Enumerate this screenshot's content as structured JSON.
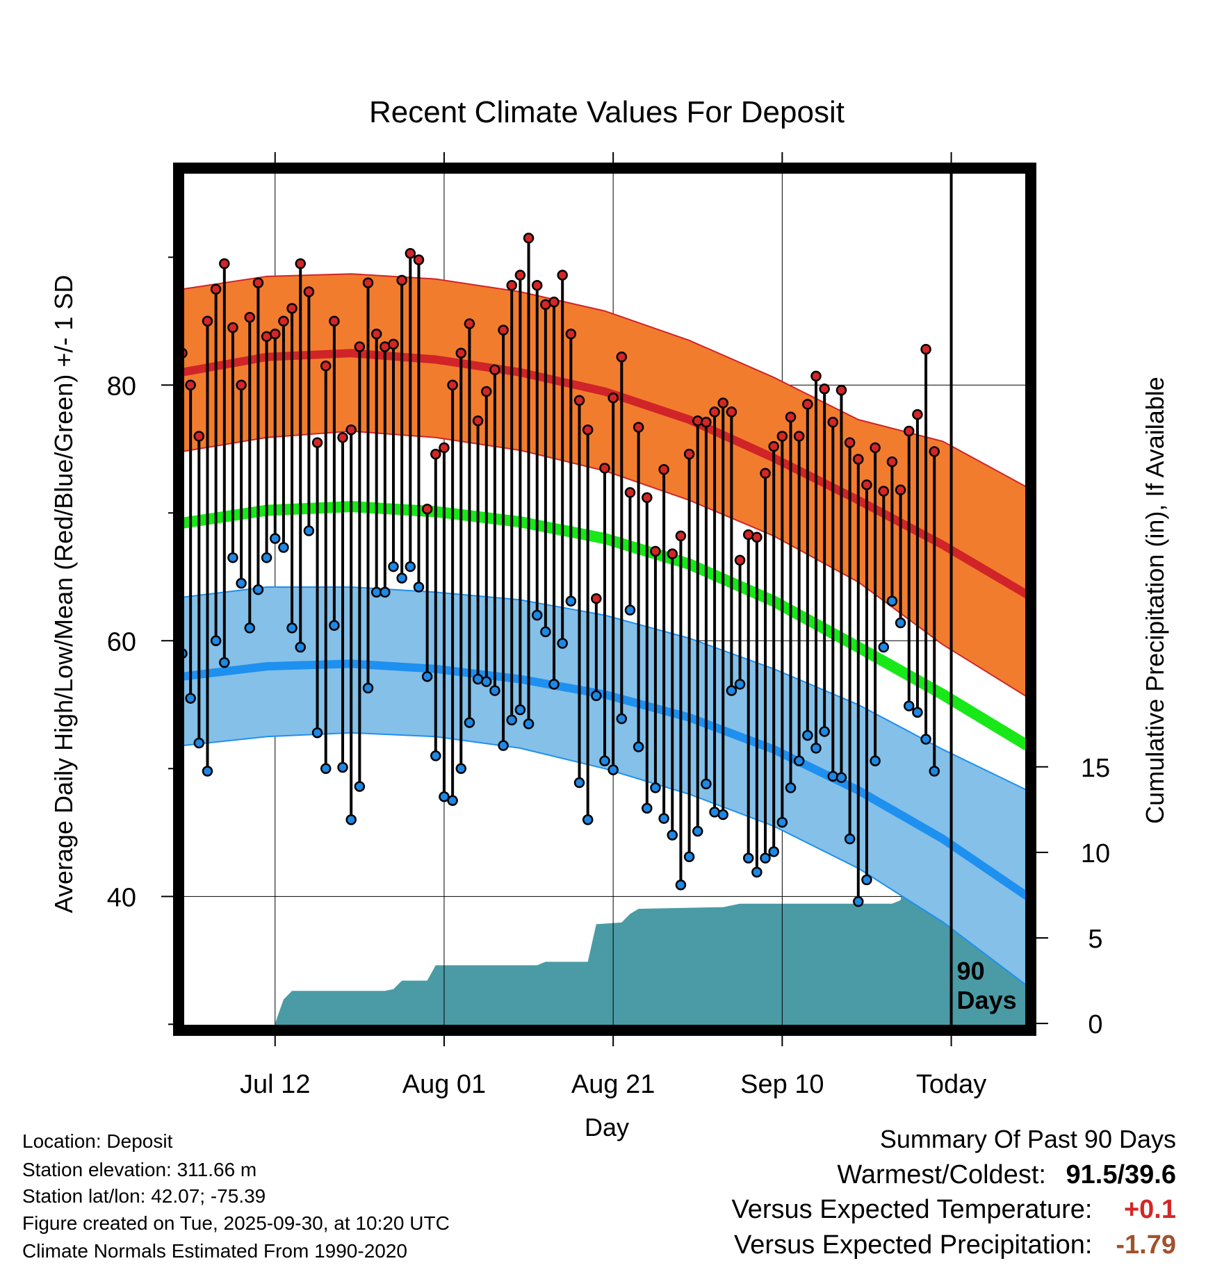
{
  "chart_data": {
    "type": "line",
    "title": "Recent Climate Values For Deposit",
    "xlabel": "Day",
    "ylabel_left": "Average Daily High/Low/Mean (Red/Blue/Green) +/- 1 SD",
    "ylabel_right": "Cumulative Precipitation (in), If Available",
    "x_tick_labels": [
      "Jul 12",
      "Aug 01",
      "Aug 21",
      "Sep 10",
      "Today"
    ],
    "x_tick_days": [
      11,
      31,
      51,
      71,
      91
    ],
    "x_range": [
      0,
      100
    ],
    "y_left_range": [
      29.8,
      96.7
    ],
    "y_left_ticks": [
      40,
      60,
      80
    ],
    "y_left_minor_ticks": [
      30,
      50,
      70,
      90
    ],
    "y_right_range": [
      -0.2,
      49.8
    ],
    "y_right_ticks": [
      0,
      5,
      10,
      15
    ],
    "today_day": 91,
    "period_label": "90 Days",
    "colors": {
      "high_band": "#f27c2e",
      "high_mean": "#d02428",
      "low_band": "#84c0e8",
      "low_mean": "#1e90f0",
      "mean_line": "#18e818",
      "precip": "#4a9ba5",
      "high_marker": "#d42626",
      "low_marker": "#1e88e5"
    },
    "normal_high": [
      {
        "day": 0,
        "mean": 81.0,
        "upper": 87.5,
        "lower": 74.8
      },
      {
        "day": 10,
        "mean": 82.2,
        "upper": 88.5,
        "lower": 75.9
      },
      {
        "day": 20,
        "mean": 82.5,
        "upper": 88.7,
        "lower": 76.4
      },
      {
        "day": 30,
        "mean": 82.0,
        "upper": 88.3,
        "lower": 75.9
      },
      {
        "day": 40,
        "mean": 81.0,
        "upper": 87.3,
        "lower": 74.9
      },
      {
        "day": 50,
        "mean": 79.5,
        "upper": 85.8,
        "lower": 73.3
      },
      {
        "day": 60,
        "mean": 77.3,
        "upper": 83.5,
        "lower": 71.0
      },
      {
        "day": 70,
        "mean": 74.3,
        "upper": 80.6,
        "lower": 68.2
      },
      {
        "day": 80,
        "mean": 71.0,
        "upper": 77.3,
        "lower": 64.6
      },
      {
        "day": 90,
        "mean": 67.5,
        "upper": 75.6,
        "lower": 59.7
      },
      {
        "day": 100,
        "mean": 63.6,
        "upper": 72.0,
        "lower": 55.6
      }
    ],
    "normal_low": [
      {
        "day": 0,
        "mean": 57.2,
        "upper": 63.4,
        "lower": 51.8
      },
      {
        "day": 10,
        "mean": 58.0,
        "upper": 64.2,
        "lower": 52.5
      },
      {
        "day": 20,
        "mean": 58.2,
        "upper": 64.2,
        "lower": 52.8
      },
      {
        "day": 30,
        "mean": 57.8,
        "upper": 63.8,
        "lower": 52.5
      },
      {
        "day": 40,
        "mean": 57.0,
        "upper": 63.2,
        "lower": 51.6
      },
      {
        "day": 50,
        "mean": 55.8,
        "upper": 62.0,
        "lower": 50.0
      },
      {
        "day": 60,
        "mean": 54.0,
        "upper": 60.2,
        "lower": 48.0
      },
      {
        "day": 70,
        "mean": 51.5,
        "upper": 57.8,
        "lower": 45.5
      },
      {
        "day": 80,
        "mean": 48.3,
        "upper": 55.0,
        "lower": 42.2
      },
      {
        "day": 90,
        "mean": 44.5,
        "upper": 51.5,
        "lower": 38.0
      },
      {
        "day": 100,
        "mean": 40.0,
        "upper": 48.3,
        "lower": 33.0
      }
    ],
    "normal_mean": [
      {
        "day": 0,
        "value": 69.2
      },
      {
        "day": 10,
        "value": 70.2
      },
      {
        "day": 20,
        "value": 70.5
      },
      {
        "day": 30,
        "value": 70.1
      },
      {
        "day": 40,
        "value": 69.3
      },
      {
        "day": 50,
        "value": 68.0
      },
      {
        "day": 60,
        "value": 66.0
      },
      {
        "day": 70,
        "value": 63.1
      },
      {
        "day": 80,
        "value": 59.5
      },
      {
        "day": 90,
        "value": 55.8
      },
      {
        "day": 100,
        "value": 51.8
      }
    ],
    "daily": [
      {
        "day": 0,
        "high": 82.5,
        "low": 59.0
      },
      {
        "day": 1,
        "high": 80.0,
        "low": 55.5
      },
      {
        "day": 2,
        "high": 76.0,
        "low": 52.0
      },
      {
        "day": 3,
        "high": 85.0,
        "low": 49.8
      },
      {
        "day": 4,
        "high": 87.5,
        "low": 60.0
      },
      {
        "day": 5,
        "high": 89.5,
        "low": 58.3
      },
      {
        "day": 6,
        "high": 84.5,
        "low": 66.5
      },
      {
        "day": 7,
        "high": 80.0,
        "low": 64.5
      },
      {
        "day": 8,
        "high": 85.3,
        "low": 61.0
      },
      {
        "day": 9,
        "high": 88.0,
        "low": 64.0
      },
      {
        "day": 10,
        "high": 83.8,
        "low": 66.5
      },
      {
        "day": 11,
        "high": 84.0,
        "low": 68.0
      },
      {
        "day": 12,
        "high": 85.0,
        "low": 67.3
      },
      {
        "day": 13,
        "high": 86.0,
        "low": 61.0
      },
      {
        "day": 14,
        "high": 89.5,
        "low": 59.5
      },
      {
        "day": 15,
        "high": 87.3,
        "low": 68.6
      },
      {
        "day": 16,
        "high": 75.5,
        "low": 52.8
      },
      {
        "day": 17,
        "high": 81.5,
        "low": 50.0
      },
      {
        "day": 18,
        "high": 85.0,
        "low": 61.2
      },
      {
        "day": 19,
        "high": 75.9,
        "low": 50.1
      },
      {
        "day": 20,
        "high": 76.5,
        "low": 46.0
      },
      {
        "day": 21,
        "high": 83.0,
        "low": 48.6
      },
      {
        "day": 22,
        "high": 88.0,
        "low": 56.3
      },
      {
        "day": 23,
        "high": 84.0,
        "low": 63.8
      },
      {
        "day": 24,
        "high": 83.0,
        "low": 63.8
      },
      {
        "day": 25,
        "high": 83.2,
        "low": 65.8
      },
      {
        "day": 26,
        "high": 88.2,
        "low": 64.9
      },
      {
        "day": 27,
        "high": 90.3,
        "low": 65.8
      },
      {
        "day": 28,
        "high": 89.8,
        "low": 64.2
      },
      {
        "day": 29,
        "high": 70.3,
        "low": 57.2
      },
      {
        "day": 30,
        "high": 74.6,
        "low": 51.0
      },
      {
        "day": 31,
        "high": 75.1,
        "low": 47.8
      },
      {
        "day": 32,
        "high": 80.0,
        "low": 47.5
      },
      {
        "day": 33,
        "high": 82.5,
        "low": 50.0
      },
      {
        "day": 34,
        "high": 84.8,
        "low": 53.6
      },
      {
        "day": 35,
        "high": 77.2,
        "low": 57.0
      },
      {
        "day": 36,
        "high": 79.5,
        "low": 56.8
      },
      {
        "day": 37,
        "high": 81.2,
        "low": 56.1
      },
      {
        "day": 38,
        "high": 84.3,
        "low": 51.8
      },
      {
        "day": 39,
        "high": 87.8,
        "low": 53.8
      },
      {
        "day": 40,
        "high": 88.6,
        "low": 54.6
      },
      {
        "day": 41,
        "high": 91.5,
        "low": 53.5
      },
      {
        "day": 42,
        "high": 87.8,
        "low": 62.0
      },
      {
        "day": 43,
        "high": 86.3,
        "low": 60.7
      },
      {
        "day": 44,
        "high": 86.5,
        "low": 56.6
      },
      {
        "day": 45,
        "high": 88.6,
        "low": 59.8
      },
      {
        "day": 46,
        "high": 84.0,
        "low": 63.1
      },
      {
        "day": 47,
        "high": 78.8,
        "low": 48.9
      },
      {
        "day": 48,
        "high": 76.5,
        "low": 46.0
      },
      {
        "day": 49,
        "high": 63.3,
        "low": 55.7
      },
      {
        "day": 50,
        "high": 73.5,
        "low": 50.6
      },
      {
        "day": 51,
        "high": 79.0,
        "low": 49.9
      },
      {
        "day": 52,
        "high": 82.2,
        "low": 53.9
      },
      {
        "day": 53,
        "high": 71.6,
        "low": 62.4
      },
      {
        "day": 54,
        "high": 76.7,
        "low": 51.7
      },
      {
        "day": 55,
        "high": 71.2,
        "low": 46.9
      },
      {
        "day": 56,
        "high": 67.0,
        "low": 48.5
      },
      {
        "day": 57,
        "high": 73.4,
        "low": 46.1
      },
      {
        "day": 58,
        "high": 66.8,
        "low": 44.8
      },
      {
        "day": 59,
        "high": 68.2,
        "low": 40.9
      },
      {
        "day": 60,
        "high": 74.6,
        "low": 43.1
      },
      {
        "day": 61,
        "high": 77.2,
        "low": 45.1
      },
      {
        "day": 62,
        "high": 77.1,
        "low": 48.8
      },
      {
        "day": 63,
        "high": 77.9,
        "low": 46.6
      },
      {
        "day": 64,
        "high": 78.6,
        "low": 46.4
      },
      {
        "day": 65,
        "high": 77.9,
        "low": 56.1
      },
      {
        "day": 66,
        "high": 66.3,
        "low": 56.6
      },
      {
        "day": 67,
        "high": 68.3,
        "low": 43.0
      },
      {
        "day": 68,
        "high": 68.1,
        "low": 41.9
      },
      {
        "day": 69,
        "high": 73.1,
        "low": 43.0
      },
      {
        "day": 70,
        "high": 75.2,
        "low": 43.5
      },
      {
        "day": 71,
        "high": 76.0,
        "low": 45.8
      },
      {
        "day": 72,
        "high": 77.5,
        "low": 48.5
      },
      {
        "day": 73,
        "high": 76.0,
        "low": 50.6
      },
      {
        "day": 74,
        "high": 78.5,
        "low": 52.6
      },
      {
        "day": 75,
        "high": 80.7,
        "low": 51.6
      },
      {
        "day": 76,
        "high": 79.7,
        "low": 52.9
      },
      {
        "day": 77,
        "high": 77.1,
        "low": 49.4
      },
      {
        "day": 78,
        "high": 79.6,
        "low": 49.3
      },
      {
        "day": 79,
        "high": 75.5,
        "low": 44.5
      },
      {
        "day": 80,
        "high": 74.2,
        "low": 39.6
      },
      {
        "day": 81,
        "high": 72.2,
        "low": 41.3
      },
      {
        "day": 82,
        "high": 75.1,
        "low": 50.6
      },
      {
        "day": 83,
        "high": 71.7,
        "low": 59.5
      },
      {
        "day": 84,
        "high": 74.0,
        "low": 63.1
      },
      {
        "day": 85,
        "high": 71.8,
        "low": 61.4
      },
      {
        "day": 86,
        "high": 76.4,
        "low": 54.9
      },
      {
        "day": 87,
        "high": 77.7,
        "low": 54.4
      },
      {
        "day": 88,
        "high": 82.8,
        "low": 52.3
      },
      {
        "day": 89,
        "high": 74.8,
        "low": 49.8
      }
    ],
    "precip_cumulative": [
      {
        "day": 11,
        "value": 0.0
      },
      {
        "day": 12,
        "value": 1.4
      },
      {
        "day": 13,
        "value": 1.9
      },
      {
        "day": 24,
        "value": 1.9
      },
      {
        "day": 25,
        "value": 2.0
      },
      {
        "day": 26,
        "value": 2.5
      },
      {
        "day": 29,
        "value": 2.5
      },
      {
        "day": 30,
        "value": 3.4
      },
      {
        "day": 42,
        "value": 3.4
      },
      {
        "day": 43,
        "value": 3.6
      },
      {
        "day": 48,
        "value": 3.6
      },
      {
        "day": 49,
        "value": 5.8
      },
      {
        "day": 52,
        "value": 5.9
      },
      {
        "day": 53,
        "value": 6.4
      },
      {
        "day": 54,
        "value": 6.7
      },
      {
        "day": 64,
        "value": 6.8
      },
      {
        "day": 66,
        "value": 7.0
      },
      {
        "day": 84,
        "value": 7.0
      },
      {
        "day": 85,
        "value": 7.2
      },
      {
        "day": 86,
        "value": 10.3
      },
      {
        "day": 100,
        "value": 10.3
      }
    ]
  },
  "info": {
    "location": "Location: Deposit",
    "elevation": "Station elevation: 311.66 m",
    "latlon": "Station lat/lon: 42.07; -75.39",
    "created": "Figure created on Tue, 2025-09-30, at 10:20 UTC",
    "normals": "Climate Normals Estimated From 1990-2020"
  },
  "summary": {
    "title": "Summary Of Past 90 Days",
    "warmest_label": "Warmest/Coldest:",
    "warmest_value": "91.5/39.6",
    "temp_label": "Versus Expected Temperature:",
    "temp_value": "+0.1",
    "temp_color": "#d42626",
    "precip_label": "Versus Expected Precipitation:",
    "precip_value": "-1.79",
    "precip_color": "#a0522d"
  }
}
